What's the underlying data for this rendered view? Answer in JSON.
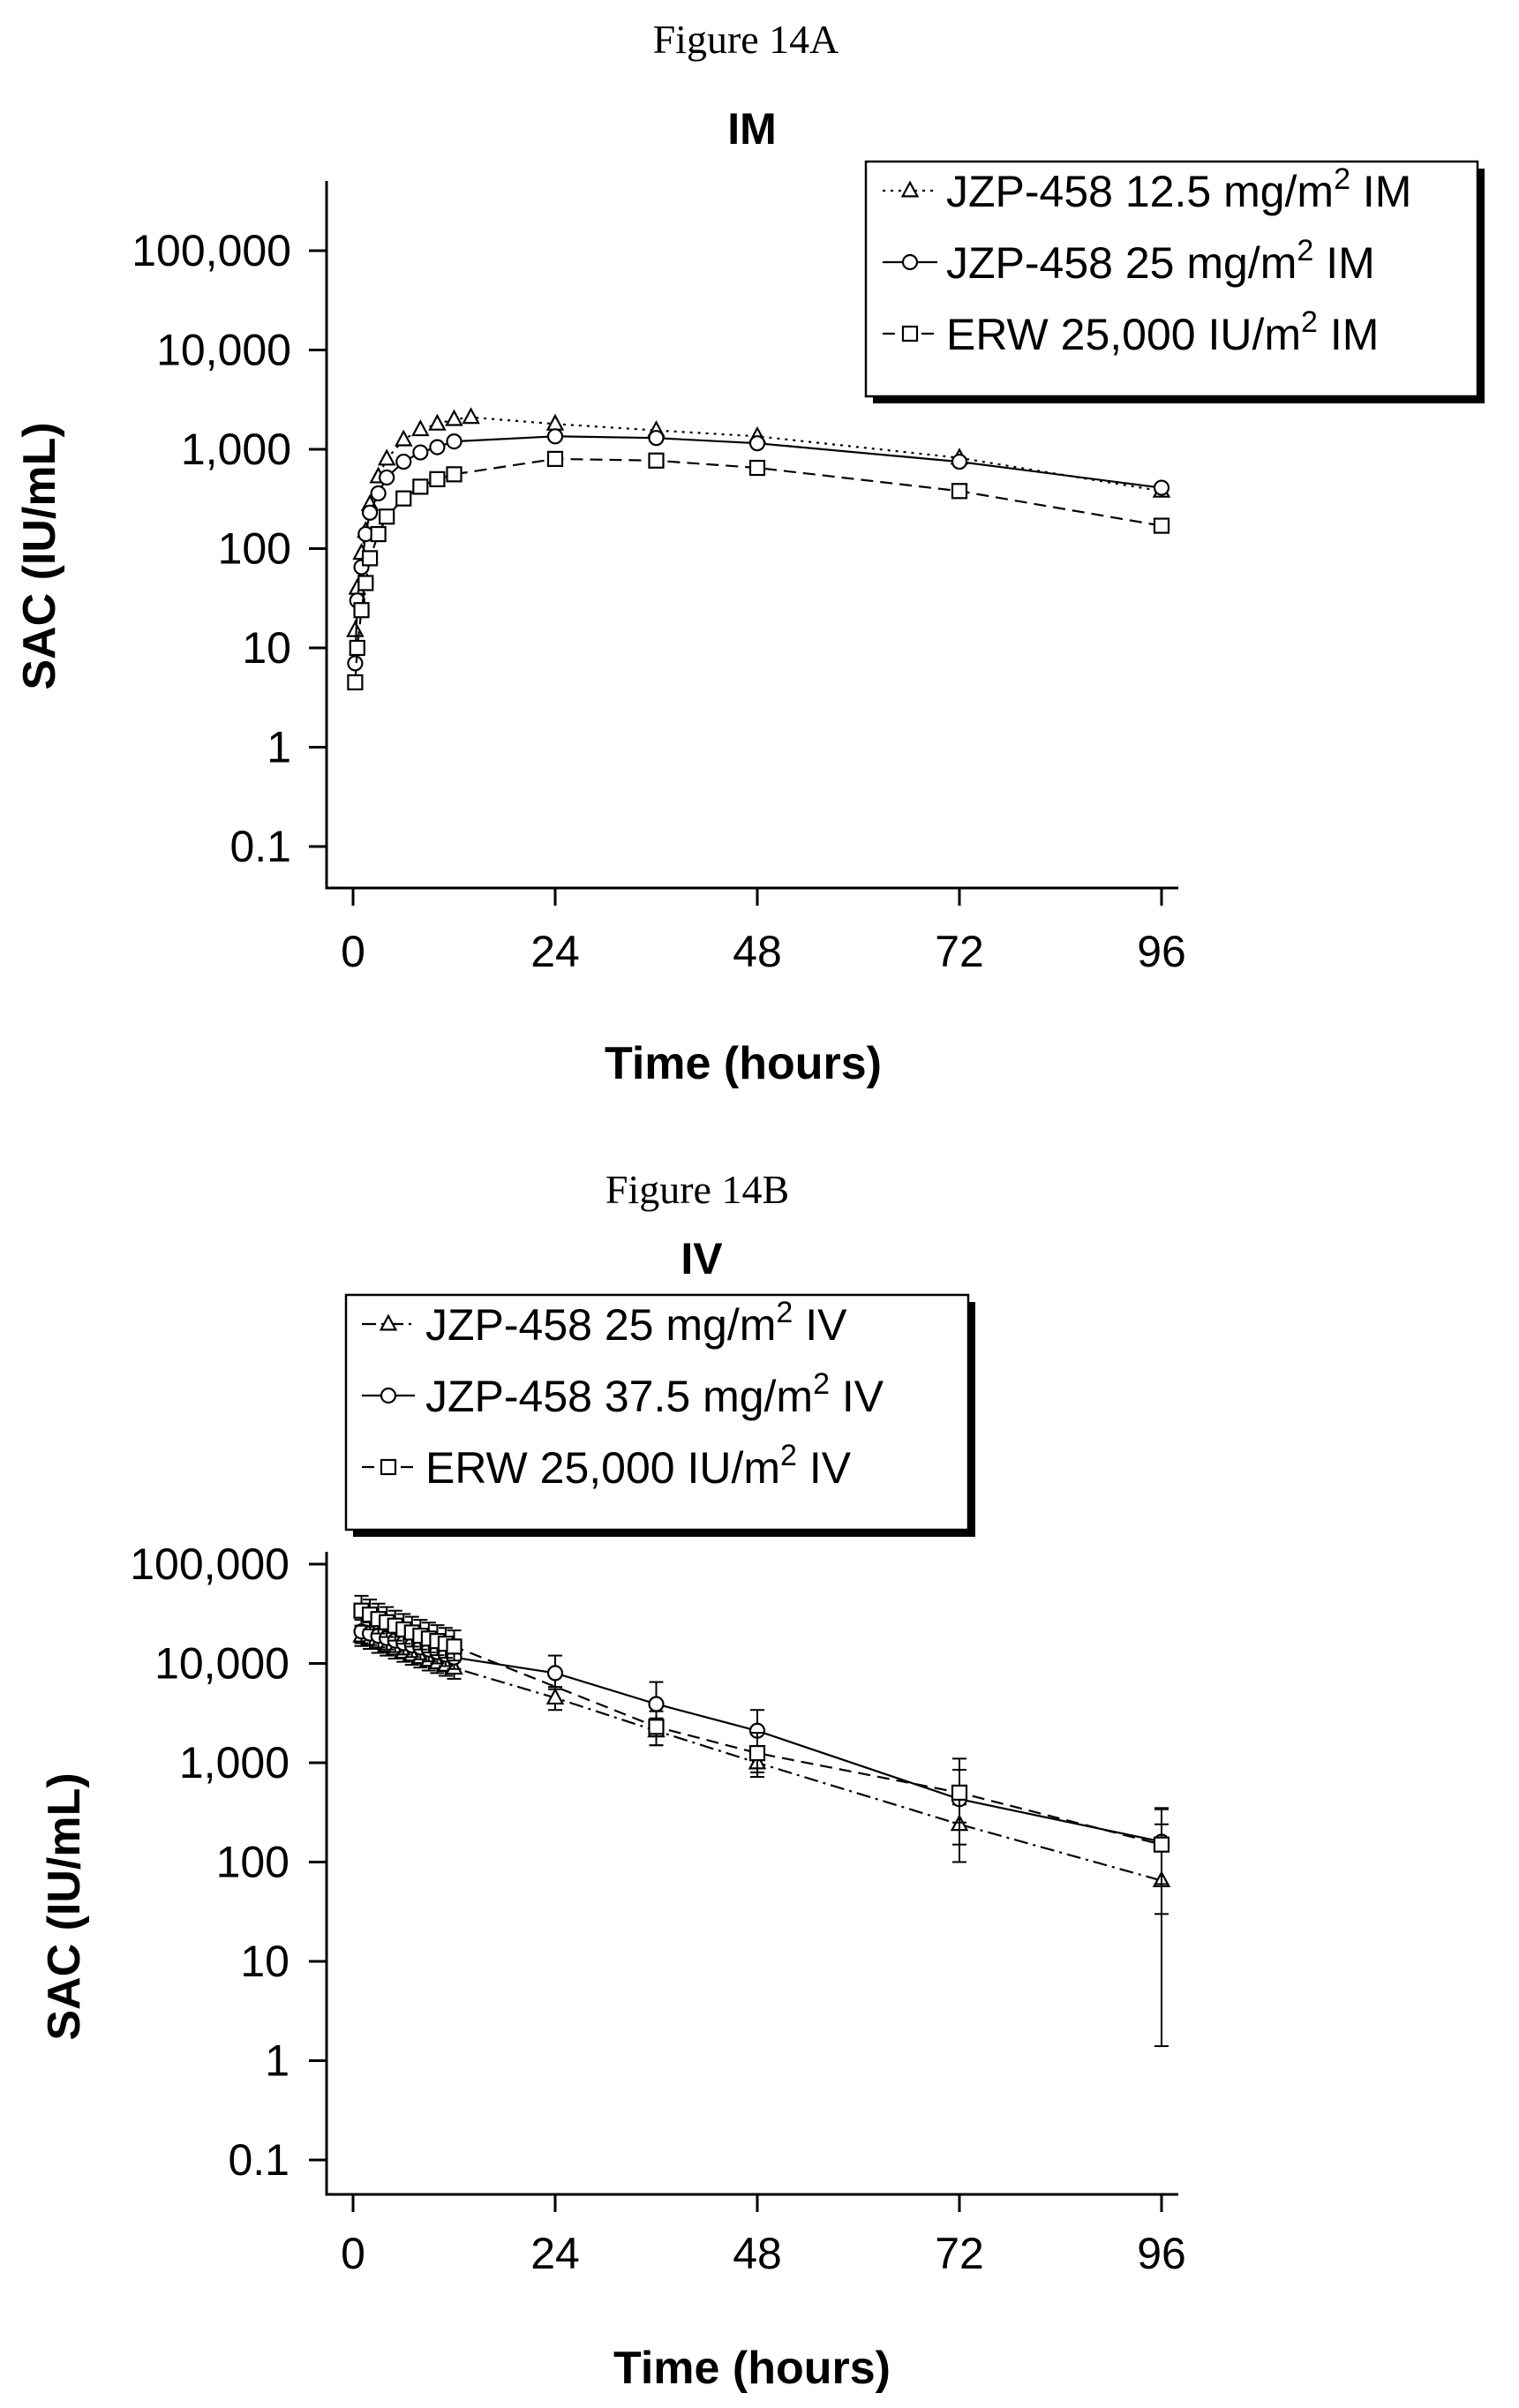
{
  "chart_data": [
    {
      "type": "line",
      "caption": "Figure 14A",
      "title": "IM",
      "xlabel": "Time (hours)",
      "ylabel": "SAC (IU/mL)",
      "yscale": "log",
      "xlim": [
        -2,
        98
      ],
      "ylim": [
        0.06,
        250000
      ],
      "x_ticks": [
        0,
        24,
        48,
        72,
        96
      ],
      "x_tick_labels": [
        "0",
        "24",
        "48",
        "72",
        "96"
      ],
      "y_ticks": [
        0.1,
        1,
        10,
        100,
        1000,
        10000,
        100000
      ],
      "y_tick_labels": [
        "0.1",
        "1",
        "10",
        "100",
        "1,000",
        "10,000",
        "100,000"
      ],
      "legend_position": "top-right",
      "series": [
        {
          "legend_main": "JZP-458 12.5 mg/m",
          "legend_sup": "2",
          "legend_suffix": " IM",
          "marker": "triangle",
          "dash": "3,6",
          "x": [
            0.25,
            0.5,
            1,
            1.5,
            2,
            3,
            4,
            6,
            8,
            10,
            12,
            14,
            24,
            36,
            48,
            72,
            96
          ],
          "y": [
            15,
            40,
            90,
            150,
            280,
            530,
            800,
            1250,
            1580,
            1800,
            2000,
            2100,
            1800,
            1550,
            1350,
            820,
            380
          ]
        },
        {
          "legend_main": "JZP-458 25 mg/m",
          "legend_sup": "2",
          "legend_suffix": " IM",
          "marker": "circle",
          "dash": "",
          "x": [
            0.25,
            0.5,
            1,
            1.5,
            2,
            3,
            4,
            6,
            8,
            10,
            12,
            24,
            36,
            48,
            72,
            96
          ],
          "y": [
            7,
            30,
            65,
            140,
            230,
            360,
            520,
            750,
            930,
            1050,
            1200,
            1350,
            1300,
            1150,
            750,
            410
          ]
        },
        {
          "legend_main": "ERW 25,000 IU/m",
          "legend_sup": "2",
          "legend_suffix": " IM",
          "marker": "square",
          "dash": "14,8",
          "x": [
            0.25,
            0.5,
            1,
            1.5,
            2,
            3,
            4,
            6,
            8,
            10,
            12,
            24,
            36,
            48,
            72,
            96
          ],
          "y": [
            4.5,
            10,
            24,
            45,
            80,
            140,
            210,
            320,
            420,
            500,
            560,
            800,
            770,
            650,
            380,
            170
          ]
        }
      ]
    },
    {
      "type": "line",
      "caption": "Figure 14B",
      "title": "IV",
      "xlabel": "Time (hours)",
      "ylabel": "SAC (IU/mL)",
      "yscale": "log",
      "xlim": [
        -2,
        98
      ],
      "ylim": [
        0.06,
        130000
      ],
      "x_ticks": [
        0,
        24,
        48,
        72,
        96
      ],
      "x_tick_labels": [
        "0",
        "24",
        "48",
        "72",
        "96"
      ],
      "y_ticks": [
        0.1,
        1,
        10,
        100,
        1000,
        10000,
        100000
      ],
      "y_tick_labels": [
        "0.1",
        "1",
        "10",
        "100",
        "1,000",
        "10,000",
        "100,000"
      ],
      "legend_position": "top-left",
      "series": [
        {
          "legend_main": "JZP-458 25 mg/m",
          "legend_sup": "2",
          "legend_suffix": " IV",
          "marker": "triangle",
          "dash": "16,6,3,6",
          "x": [
            1,
            2,
            3,
            4,
            5,
            6,
            7,
            8,
            9,
            10,
            11,
            12,
            24,
            36,
            48,
            72,
            96
          ],
          "y": [
            19000,
            17500,
            16000,
            15000,
            14000,
            13000,
            12200,
            11500,
            10800,
            10200,
            9600,
            9000,
            4500,
            2100,
            1000,
            240,
            65
          ],
          "err_low": [
            15000,
            14000,
            12800,
            12000,
            11200,
            10400,
            9700,
            9100,
            8500,
            8000,
            7500,
            7000,
            3400,
            1500,
            720,
            100,
            1.4
          ],
          "err_high": [
            24000,
            22000,
            20000,
            19000,
            17800,
            16500,
            15500,
            14500,
            13700,
            13000,
            12200,
            11500,
            5800,
            2800,
            1350,
            380,
            240
          ]
        },
        {
          "legend_main": "JZP-458 37.5 mg/m",
          "legend_sup": "2",
          "legend_suffix": " IV",
          "marker": "circle",
          "dash": "",
          "x": [
            1,
            2,
            3,
            4,
            5,
            6,
            7,
            8,
            9,
            10,
            11,
            12,
            24,
            36,
            48,
            72,
            96
          ],
          "y": [
            21000,
            20000,
            19000,
            18000,
            17000,
            16000,
            15200,
            14500,
            13800,
            13000,
            12300,
            11500,
            8000,
            3900,
            2100,
            430,
            160
          ],
          "err_low": [
            16000,
            15300,
            14500,
            13800,
            13000,
            12300,
            11600,
            11000,
            10500,
            10000,
            9400,
            8800,
            5500,
            2300,
            1300,
            250,
            30
          ],
          "err_high": [
            27500,
            26000,
            25000,
            23500,
            22000,
            21000,
            20000,
            19000,
            18000,
            17000,
            16000,
            15000,
            12000,
            6500,
            3400,
            850,
            350
          ]
        },
        {
          "legend_main": "ERW 25,000 IU/m",
          "legend_sup": "2",
          "legend_suffix": " IV",
          "marker": "square",
          "dash": "14,8",
          "x": [
            1,
            2,
            3,
            4,
            5,
            6,
            7,
            8,
            9,
            10,
            11,
            12,
            36,
            48,
            72,
            96
          ],
          "y": [
            34000,
            31000,
            28000,
            26000,
            24000,
            22000,
            20500,
            19000,
            17800,
            16800,
            15800,
            14800,
            2300,
            1250,
            500,
            150
          ],
          "err_low": [
            24000,
            22000,
            20000,
            18500,
            17000,
            15800,
            14800,
            13800,
            12900,
            12100,
            11400,
            10700,
            1500,
            800,
            150,
            60
          ],
          "err_high": [
            48000,
            44000,
            40000,
            37000,
            34000,
            31500,
            29500,
            27500,
            25800,
            24300,
            22800,
            21500,
            3300,
            2000,
            1100,
            340
          ]
        }
      ]
    }
  ]
}
